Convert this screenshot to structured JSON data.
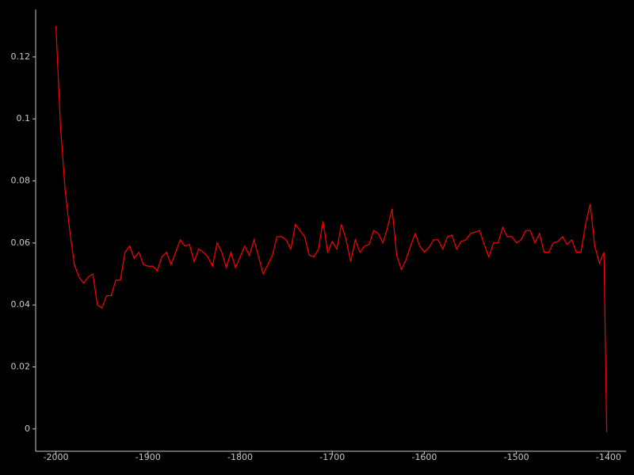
{
  "chart_data": {
    "type": "line",
    "x": [
      -2000,
      -1995,
      -1990,
      -1985,
      -1980,
      -1975,
      -1970,
      -1965,
      -1960,
      -1955,
      -1950,
      -1945,
      -1940,
      -1935,
      -1930,
      -1925,
      -1920,
      -1915,
      -1910,
      -1905,
      -1900,
      -1895,
      -1890,
      -1885,
      -1880,
      -1875,
      -1870,
      -1865,
      -1860,
      -1855,
      -1850,
      -1845,
      -1840,
      -1835,
      -1830,
      -1825,
      -1820,
      -1815,
      -1810,
      -1805,
      -1800,
      -1795,
      -1790,
      -1785,
      -1780,
      -1775,
      -1770,
      -1765,
      -1760,
      -1755,
      -1750,
      -1745,
      -1740,
      -1735,
      -1730,
      -1725,
      -1720,
      -1715,
      -1710,
      -1705,
      -1700,
      -1695,
      -1690,
      -1685,
      -1680,
      -1675,
      -1670,
      -1665,
      -1660,
      -1655,
      -1650,
      -1645,
      -1640,
      -1635,
      -1630,
      -1625,
      -1620,
      -1615,
      -1610,
      -1605,
      -1600,
      -1595,
      -1590,
      -1585,
      -1580,
      -1575,
      -1570,
      -1565,
      -1560,
      -1555,
      -1550,
      -1545,
      -1540,
      -1535,
      -1530,
      -1525,
      -1520,
      -1515,
      -1510,
      -1505,
      -1500,
      -1495,
      -1490,
      -1485,
      -1480,
      -1475,
      -1470,
      -1465,
      -1460,
      -1455,
      -1450,
      -1445,
      -1440,
      -1435,
      -1430,
      -1425,
      -1420,
      -1415,
      -1410,
      -1405,
      -1402
    ],
    "series": [
      {
        "color": "#ff0000",
        "values": [
          0.13,
          0.0975,
          0.077,
          0.064,
          0.053,
          0.049,
          0.047,
          0.049,
          0.05,
          0.04,
          0.039,
          0.043,
          0.043,
          0.048,
          0.048,
          0.057,
          0.059,
          0.055,
          0.057,
          0.053,
          0.0525,
          0.0525,
          0.051,
          0.0555,
          0.057,
          0.053,
          0.057,
          0.061,
          0.059,
          0.0595,
          0.054,
          0.058,
          0.057,
          0.0555,
          0.0525,
          0.06,
          0.057,
          0.052,
          0.057,
          0.052,
          0.0555,
          0.059,
          0.056,
          0.061,
          0.0555,
          0.05,
          0.053,
          0.056,
          0.062,
          0.062,
          0.061,
          0.058,
          0.066,
          0.064,
          0.062,
          0.056,
          0.0555,
          0.058,
          0.067,
          0.057,
          0.0605,
          0.058,
          0.066,
          0.061,
          0.054,
          0.061,
          0.057,
          0.059,
          0.0595,
          0.064,
          0.063,
          0.06,
          0.065,
          0.071,
          0.056,
          0.0515,
          0.0545,
          0.059,
          0.063,
          0.059,
          0.057,
          0.0585,
          0.061,
          0.061,
          0.058,
          0.062,
          0.0625,
          0.058,
          0.0605,
          0.061,
          0.063,
          0.0635,
          0.064,
          0.0595,
          0.0555,
          0.06,
          0.06,
          0.065,
          0.062,
          0.062,
          0.06,
          0.061,
          0.064,
          0.064,
          0.06,
          0.063,
          0.057,
          0.057,
          0.06,
          0.0605,
          0.062,
          0.0595,
          0.061,
          0.057,
          0.057,
          0.066,
          0.0725,
          0.059,
          0.0535,
          0.057,
          -0.001
        ]
      }
    ],
    "xlim": [
      -2022,
      -1381
    ],
    "ylim": [
      -0.0072,
      0.1353
    ],
    "xticks": [
      -2000,
      -1900,
      -1800,
      -1700,
      -1600,
      -1500,
      -1400
    ],
    "yticks": [
      0,
      0.02,
      0.04,
      0.06,
      0.08,
      0.1,
      0.12
    ]
  }
}
